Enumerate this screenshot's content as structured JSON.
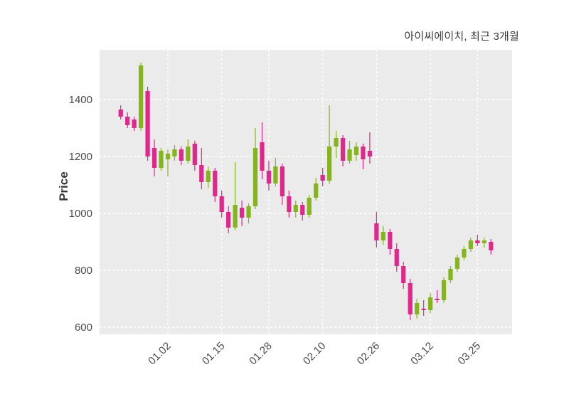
{
  "title": "아이씨에이치, 최근 3개월",
  "chart_data": {
    "type": "candlestick",
    "title": "아이씨에이치, 최근 3개월",
    "ylabel": "Price",
    "xlabel": "",
    "y_ticks": [
      600,
      800,
      1000,
      1200,
      1400
    ],
    "ylim": [
      575,
      1575
    ],
    "x_tick_labels": [
      "01.02",
      "01.15",
      "01.28",
      "02.10",
      "02.26",
      "03.12",
      "03.25"
    ],
    "x_tick_indices": [
      7,
      15,
      22,
      30,
      38,
      46,
      53
    ],
    "up_color": "#84b41e",
    "down_color": "#e0288c",
    "plot_bg": "#ebebeb",
    "grid": "white-dashed",
    "legend": "none",
    "candles": [
      [
        1365,
        1380,
        1330,
        1340
      ],
      [
        1340,
        1355,
        1300,
        1310
      ],
      [
        1330,
        1340,
        1290,
        1300
      ],
      [
        1300,
        1530,
        1290,
        1520
      ],
      [
        1430,
        1445,
        1185,
        1200
      ],
      [
        1230,
        1260,
        1130,
        1160
      ],
      [
        1160,
        1230,
        1150,
        1220
      ],
      [
        1190,
        1225,
        1130,
        1210
      ],
      [
        1200,
        1240,
        1185,
        1225
      ],
      [
        1225,
        1235,
        1170,
        1185
      ],
      [
        1185,
        1260,
        1175,
        1235
      ],
      [
        1245,
        1255,
        1150,
        1170
      ],
      [
        1170,
        1230,
        1085,
        1110
      ],
      [
        1110,
        1165,
        1090,
        1150
      ],
      [
        1150,
        1160,
        1040,
        1060
      ],
      [
        1060,
        1080,
        985,
        1005
      ],
      [
        1005,
        1025,
        930,
        950
      ],
      [
        950,
        1180,
        940,
        1030
      ],
      [
        1020,
        1045,
        955,
        985
      ],
      [
        985,
        1035,
        965,
        1025
      ],
      [
        1025,
        1300,
        1015,
        1230
      ],
      [
        1250,
        1320,
        1120,
        1150
      ],
      [
        1150,
        1185,
        1080,
        1105
      ],
      [
        1105,
        1195,
        1095,
        1165
      ],
      [
        1165,
        1175,
        1030,
        1060
      ],
      [
        1060,
        1080,
        985,
        1005
      ],
      [
        1005,
        1045,
        985,
        1030
      ],
      [
        1030,
        1040,
        975,
        995
      ],
      [
        995,
        1065,
        985,
        1055
      ],
      [
        1055,
        1125,
        1045,
        1105
      ],
      [
        1135,
        1160,
        1095,
        1115
      ],
      [
        1115,
        1380,
        1105,
        1235
      ],
      [
        1235,
        1290,
        1195,
        1265
      ],
      [
        1265,
        1275,
        1165,
        1185
      ],
      [
        1185,
        1255,
        1175,
        1225
      ],
      [
        1205,
        1250,
        1185,
        1235
      ],
      [
        1235,
        1245,
        1155,
        1190
      ],
      [
        1220,
        1285,
        1175,
        1200
      ],
      [
        965,
        1005,
        880,
        905
      ],
      [
        905,
        955,
        890,
        935
      ],
      [
        935,
        945,
        855,
        875
      ],
      [
        875,
        895,
        795,
        815
      ],
      [
        815,
        830,
        735,
        755
      ],
      [
        755,
        770,
        625,
        645
      ],
      [
        645,
        700,
        630,
        685
      ],
      [
        665,
        695,
        640,
        660
      ],
      [
        660,
        720,
        650,
        705
      ],
      [
        700,
        730,
        685,
        695
      ],
      [
        695,
        775,
        685,
        765
      ],
      [
        765,
        815,
        755,
        805
      ],
      [
        805,
        855,
        795,
        845
      ],
      [
        845,
        885,
        835,
        875
      ],
      [
        875,
        915,
        865,
        905
      ],
      [
        905,
        925,
        885,
        895
      ],
      [
        895,
        915,
        880,
        905
      ],
      [
        900,
        910,
        855,
        870
      ]
    ]
  }
}
